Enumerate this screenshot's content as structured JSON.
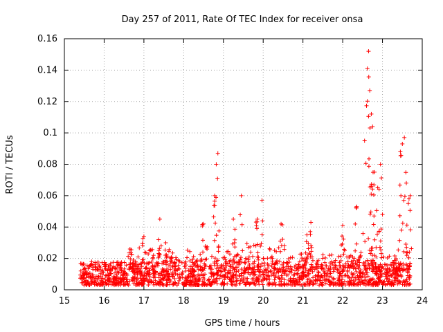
{
  "chart_data": {
    "type": "scatter",
    "title": "Day 257 of 2011, Rate Of TEC Index for receiver onsa",
    "xlabel": "GPS time / hours",
    "ylabel": "ROTI / TECUs",
    "xlim": [
      15,
      24
    ],
    "ylim": [
      0,
      0.16
    ],
    "x_ticks": [
      "15",
      "16",
      "17",
      "18",
      "19",
      "20",
      "21",
      "22",
      "23",
      "24"
    ],
    "y_ticks": [
      "0",
      "0.02",
      "0.04",
      "0.06",
      "0.08",
      "0.1",
      "0.12",
      "0.14",
      "0.16"
    ],
    "grid": true,
    "marker": "+",
    "marker_color": "#ff0000",
    "series": [
      {
        "name": "ROTI",
        "x_start": 15.4,
        "x_end": 23.7,
        "base_band": [
          0.003,
          0.018
        ],
        "notable_points": [
          {
            "x": 15.45,
            "y": 0.016
          },
          {
            "x": 16.65,
            "y": 0.026
          },
          {
            "x": 17.0,
            "y": 0.034
          },
          {
            "x": 17.4,
            "y": 0.045
          },
          {
            "x": 17.55,
            "y": 0.03
          },
          {
            "x": 18.5,
            "y": 0.042
          },
          {
            "x": 18.78,
            "y": 0.06
          },
          {
            "x": 18.82,
            "y": 0.08
          },
          {
            "x": 18.86,
            "y": 0.087
          },
          {
            "x": 19.25,
            "y": 0.045
          },
          {
            "x": 19.45,
            "y": 0.06
          },
          {
            "x": 19.85,
            "y": 0.045
          },
          {
            "x": 19.97,
            "y": 0.057
          },
          {
            "x": 20.45,
            "y": 0.042
          },
          {
            "x": 21.1,
            "y": 0.035
          },
          {
            "x": 21.2,
            "y": 0.043
          },
          {
            "x": 22.0,
            "y": 0.041
          },
          {
            "x": 22.35,
            "y": 0.053
          },
          {
            "x": 22.55,
            "y": 0.095
          },
          {
            "x": 22.62,
            "y": 0.141
          },
          {
            "x": 22.65,
            "y": 0.152
          },
          {
            "x": 22.68,
            "y": 0.127
          },
          {
            "x": 22.72,
            "y": 0.112
          },
          {
            "x": 22.75,
            "y": 0.104
          },
          {
            "x": 22.8,
            "y": 0.075
          },
          {
            "x": 22.88,
            "y": 0.065
          },
          {
            "x": 22.95,
            "y": 0.08
          },
          {
            "x": 23.0,
            "y": 0.048
          },
          {
            "x": 23.45,
            "y": 0.088
          },
          {
            "x": 23.5,
            "y": 0.093
          },
          {
            "x": 23.55,
            "y": 0.097
          },
          {
            "x": 23.6,
            "y": 0.068
          },
          {
            "x": 23.65,
            "y": 0.055
          },
          {
            "x": 23.7,
            "y": 0.06
          }
        ]
      }
    ]
  }
}
